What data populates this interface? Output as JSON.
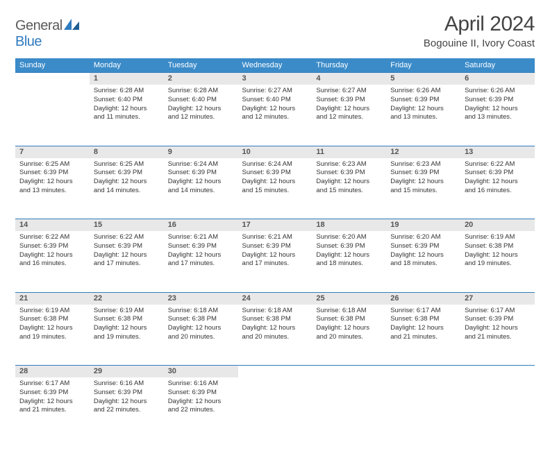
{
  "brand": {
    "part1": "General",
    "part2": "Blue"
  },
  "title": "April 2024",
  "location": "Bogouine II, Ivory Coast",
  "weekday_headers": [
    "Sunday",
    "Monday",
    "Tuesday",
    "Wednesday",
    "Thursday",
    "Friday",
    "Saturday"
  ],
  "colors": {
    "header_bg": "#3b8bc9",
    "rule": "#2f7bbf",
    "daynum_bg": "#e8e8e8",
    "text": "#333333"
  },
  "weeks": [
    [
      {
        "n": "",
        "sr": "",
        "ss": "",
        "dl": ""
      },
      {
        "n": "1",
        "sr": "6:28 AM",
        "ss": "6:40 PM",
        "dl": "12 hours and 11 minutes."
      },
      {
        "n": "2",
        "sr": "6:28 AM",
        "ss": "6:40 PM",
        "dl": "12 hours and 12 minutes."
      },
      {
        "n": "3",
        "sr": "6:27 AM",
        "ss": "6:40 PM",
        "dl": "12 hours and 12 minutes."
      },
      {
        "n": "4",
        "sr": "6:27 AM",
        "ss": "6:39 PM",
        "dl": "12 hours and 12 minutes."
      },
      {
        "n": "5",
        "sr": "6:26 AM",
        "ss": "6:39 PM",
        "dl": "12 hours and 13 minutes."
      },
      {
        "n": "6",
        "sr": "6:26 AM",
        "ss": "6:39 PM",
        "dl": "12 hours and 13 minutes."
      }
    ],
    [
      {
        "n": "7",
        "sr": "6:25 AM",
        "ss": "6:39 PM",
        "dl": "12 hours and 13 minutes."
      },
      {
        "n": "8",
        "sr": "6:25 AM",
        "ss": "6:39 PM",
        "dl": "12 hours and 14 minutes."
      },
      {
        "n": "9",
        "sr": "6:24 AM",
        "ss": "6:39 PM",
        "dl": "12 hours and 14 minutes."
      },
      {
        "n": "10",
        "sr": "6:24 AM",
        "ss": "6:39 PM",
        "dl": "12 hours and 15 minutes."
      },
      {
        "n": "11",
        "sr": "6:23 AM",
        "ss": "6:39 PM",
        "dl": "12 hours and 15 minutes."
      },
      {
        "n": "12",
        "sr": "6:23 AM",
        "ss": "6:39 PM",
        "dl": "12 hours and 15 minutes."
      },
      {
        "n": "13",
        "sr": "6:22 AM",
        "ss": "6:39 PM",
        "dl": "12 hours and 16 minutes."
      }
    ],
    [
      {
        "n": "14",
        "sr": "6:22 AM",
        "ss": "6:39 PM",
        "dl": "12 hours and 16 minutes."
      },
      {
        "n": "15",
        "sr": "6:22 AM",
        "ss": "6:39 PM",
        "dl": "12 hours and 17 minutes."
      },
      {
        "n": "16",
        "sr": "6:21 AM",
        "ss": "6:39 PM",
        "dl": "12 hours and 17 minutes."
      },
      {
        "n": "17",
        "sr": "6:21 AM",
        "ss": "6:39 PM",
        "dl": "12 hours and 17 minutes."
      },
      {
        "n": "18",
        "sr": "6:20 AM",
        "ss": "6:39 PM",
        "dl": "12 hours and 18 minutes."
      },
      {
        "n": "19",
        "sr": "6:20 AM",
        "ss": "6:39 PM",
        "dl": "12 hours and 18 minutes."
      },
      {
        "n": "20",
        "sr": "6:19 AM",
        "ss": "6:38 PM",
        "dl": "12 hours and 19 minutes."
      }
    ],
    [
      {
        "n": "21",
        "sr": "6:19 AM",
        "ss": "6:38 PM",
        "dl": "12 hours and 19 minutes."
      },
      {
        "n": "22",
        "sr": "6:19 AM",
        "ss": "6:38 PM",
        "dl": "12 hours and 19 minutes."
      },
      {
        "n": "23",
        "sr": "6:18 AM",
        "ss": "6:38 PM",
        "dl": "12 hours and 20 minutes."
      },
      {
        "n": "24",
        "sr": "6:18 AM",
        "ss": "6:38 PM",
        "dl": "12 hours and 20 minutes."
      },
      {
        "n": "25",
        "sr": "6:18 AM",
        "ss": "6:38 PM",
        "dl": "12 hours and 20 minutes."
      },
      {
        "n": "26",
        "sr": "6:17 AM",
        "ss": "6:38 PM",
        "dl": "12 hours and 21 minutes."
      },
      {
        "n": "27",
        "sr": "6:17 AM",
        "ss": "6:39 PM",
        "dl": "12 hours and 21 minutes."
      }
    ],
    [
      {
        "n": "28",
        "sr": "6:17 AM",
        "ss": "6:39 PM",
        "dl": "12 hours and 21 minutes."
      },
      {
        "n": "29",
        "sr": "6:16 AM",
        "ss": "6:39 PM",
        "dl": "12 hours and 22 minutes."
      },
      {
        "n": "30",
        "sr": "6:16 AM",
        "ss": "6:39 PM",
        "dl": "12 hours and 22 minutes."
      },
      {
        "n": "",
        "sr": "",
        "ss": "",
        "dl": ""
      },
      {
        "n": "",
        "sr": "",
        "ss": "",
        "dl": ""
      },
      {
        "n": "",
        "sr": "",
        "ss": "",
        "dl": ""
      },
      {
        "n": "",
        "sr": "",
        "ss": "",
        "dl": ""
      }
    ]
  ],
  "labels": {
    "sunrise": "Sunrise: ",
    "sunset": "Sunset: ",
    "daylight": "Daylight: "
  }
}
